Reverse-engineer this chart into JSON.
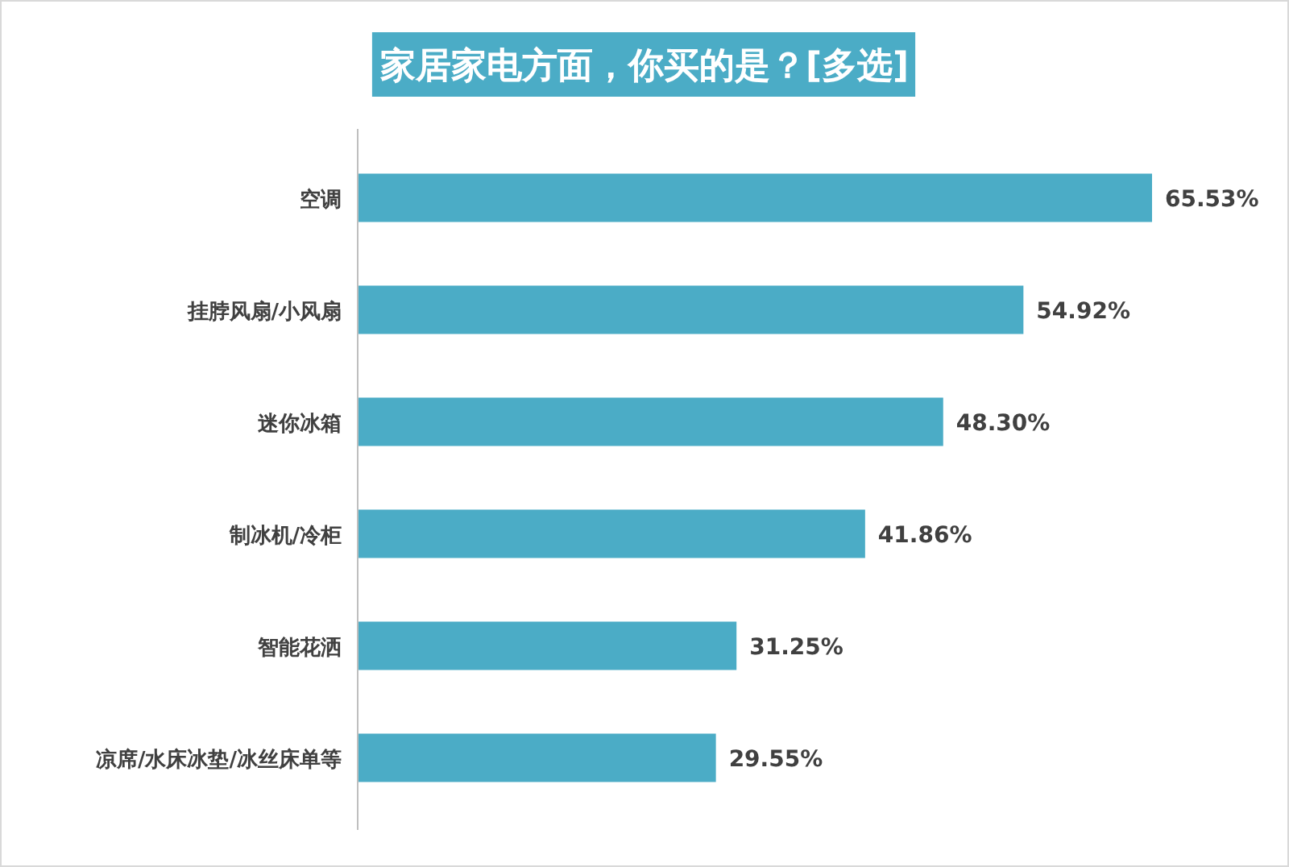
{
  "chart_data": {
    "type": "bar",
    "orientation": "horizontal",
    "title": "家居家电方面，你买的是？[多选]",
    "categories": [
      "空调",
      "挂脖风扇/小风扇",
      "迷你冰箱",
      "制冰机/冷柜",
      "智能花洒",
      "凉席/水床冰垫/冰丝床单等"
    ],
    "values": [
      65.53,
      54.92,
      48.3,
      41.86,
      31.25,
      29.55
    ],
    "value_labels": [
      "65.53%",
      "54.92%",
      "48.30%",
      "41.86%",
      "31.25%",
      "29.55%"
    ],
    "color": "#4bacc6"
  }
}
